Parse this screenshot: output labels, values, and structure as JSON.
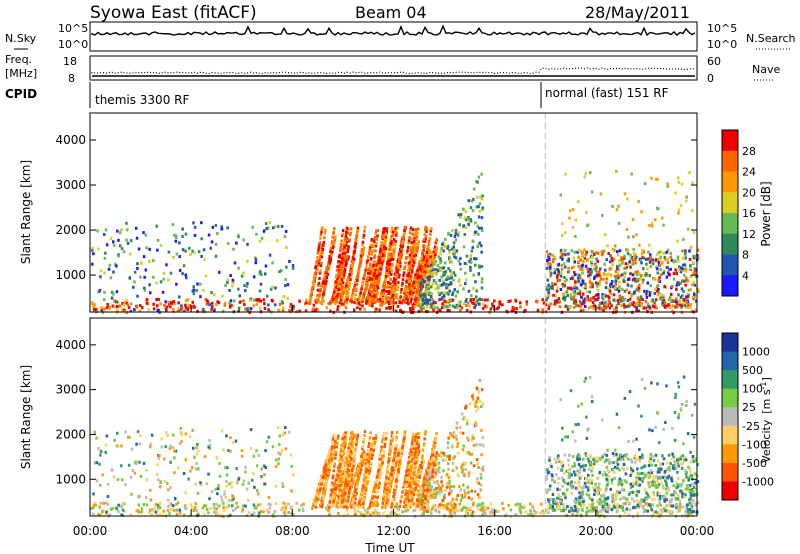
{
  "header": {
    "station": "Syowa East (fitACF)",
    "beam": "Beam 04",
    "date": "28/May/2011"
  },
  "noise_panel": {
    "left_label": "N.Sky",
    "right_label": "N.Search",
    "ytick_top": "10^5",
    "ytick_bottom": "10^0"
  },
  "freq_panel": {
    "left_label_1": "Freq.",
    "left_label_2": "[MHz]",
    "right_label": "Nave",
    "left_ticks": [
      "18",
      "8"
    ],
    "right_ticks": [
      "60",
      "0"
    ]
  },
  "cpid_panel": {
    "label": "CPID",
    "programs": [
      {
        "name": "themis 3300 RF"
      },
      {
        "name": "normal (fast) 151 RF"
      }
    ]
  },
  "colors": {
    "power": [
      "#1a1aff",
      "#2255b0",
      "#2e8b57",
      "#66bb55",
      "#ddcc22",
      "#ff9900",
      "#ff6600",
      "#ee0000"
    ],
    "velocity": [
      "#ee0000",
      "#ff5500",
      "#ff9900",
      "#ffcc66",
      "#bbbbbb",
      "#77cc44",
      "#339966",
      "#2266aa",
      "#1a3399"
    ]
  },
  "chart_data": [
    {
      "type": "heatmap",
      "ylabel": "Slant Range [km]",
      "ylim": [
        180,
        4600
      ],
      "yticks": [
        "1000",
        "2000",
        "3000",
        "4000"
      ],
      "colorbar": {
        "label": "Power [dB]",
        "ticks": [
          "4",
          "8",
          "12",
          "16",
          "20",
          "24",
          "28"
        ]
      },
      "regions": [
        {
          "t_hr": [
            0,
            8
          ],
          "range_km": [
            200,
            2200
          ],
          "level": 4
        },
        {
          "t_hr": [
            8.6,
            13
          ],
          "range_km": [
            200,
            2000
          ],
          "level": 26
        },
        {
          "t_hr": [
            13,
            15
          ],
          "range_km": [
            300,
            3300
          ],
          "level": 10
        },
        {
          "t_hr": [
            18,
            24
          ],
          "range_km": [
            300,
            1500
          ],
          "level": 20
        }
      ]
    },
    {
      "type": "heatmap",
      "ylabel": "Slant Range [km]",
      "xlabel": "Time UT",
      "ylim": [
        180,
        4600
      ],
      "xlim_hours": [
        0,
        24
      ],
      "yticks": [
        "1000",
        "2000",
        "3000",
        "4000"
      ],
      "xticks": [
        "00:00",
        "04:00",
        "08:00",
        "12:00",
        "16:00",
        "20:00",
        "00:00"
      ],
      "colorbar": {
        "label": "Velocity",
        "unit": "[m s",
        "unit_sup": "-1",
        "unit_end": "]",
        "ticks": [
          "1000",
          "500",
          "100",
          "25",
          "-25",
          "-100",
          "-500",
          "-1000"
        ]
      },
      "regions": [
        {
          "t_hr": [
            0,
            8
          ],
          "range_km": [
            200,
            2200
          ],
          "velocity": -100
        },
        {
          "t_hr": [
            8.6,
            13
          ],
          "range_km": [
            200,
            2000
          ],
          "velocity": -500
        },
        {
          "t_hr": [
            13,
            15
          ],
          "range_km": [
            300,
            3300
          ],
          "velocity": -200
        },
        {
          "t_hr": [
            18,
            24
          ],
          "range_km": [
            300,
            1500
          ],
          "velocity": 100
        }
      ]
    }
  ]
}
